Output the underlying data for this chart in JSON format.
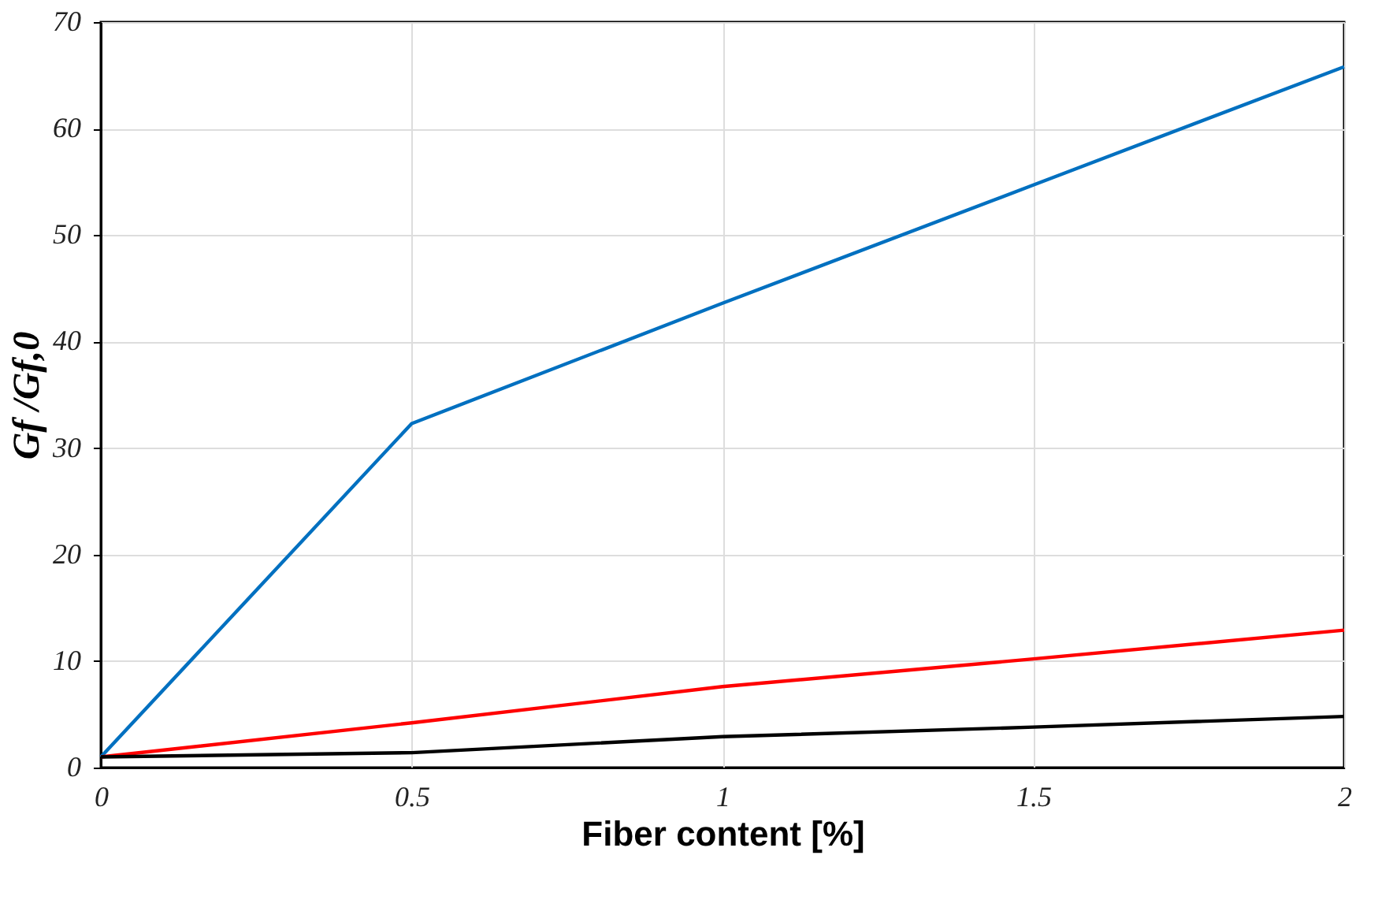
{
  "chart_data": {
    "type": "line",
    "xlabel": "Fiber content [%]",
    "ylabel": "Gf /Gf,0",
    "x": [
      0,
      0.5,
      1,
      1.5,
      2
    ],
    "series": [
      {
        "color": "#0070c0",
        "values": [
          1,
          32.3,
          43.6,
          54.7,
          65.8
        ]
      },
      {
        "color": "#ff0000",
        "values": [
          1,
          4.2,
          7.6,
          10.2,
          12.9
        ]
      },
      {
        "color": "#000000",
        "values": [
          1,
          1.4,
          2.9,
          3.8,
          4.8
        ]
      }
    ],
    "xlim": [
      0,
      2
    ],
    "xticks": [
      0,
      0.5,
      1,
      1.5,
      2
    ],
    "ylim": [
      0,
      70
    ],
    "yticks": [
      0,
      10,
      20,
      30,
      40,
      50,
      60,
      70
    ],
    "grid": true,
    "legend": false,
    "marker": "none",
    "line_style": "solid"
  }
}
